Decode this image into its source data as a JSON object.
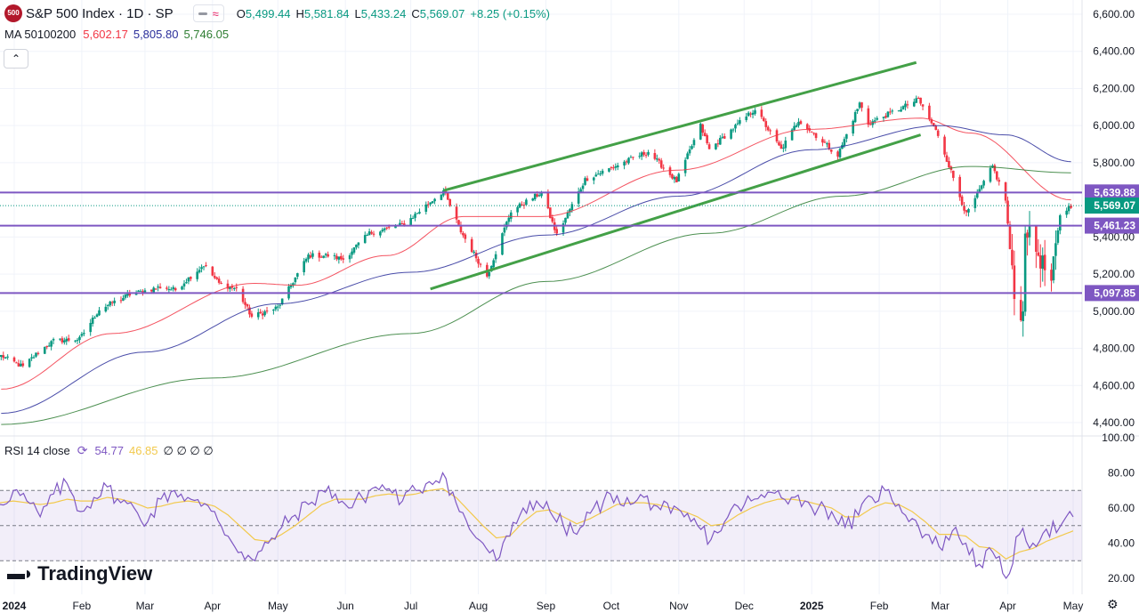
{
  "header": {
    "badge": "500",
    "title": "S&P 500 Index · 1D · SP",
    "open_label": "O",
    "open": "5,499.44",
    "high_label": "H",
    "high": "5,581.84",
    "low_label": "L",
    "low": "5,433.24",
    "close_label": "C",
    "close": "5,569.07",
    "change": "+8.25 (+0.15%)"
  },
  "ma_legend": {
    "label": "MA 50100200",
    "ma50": "5,602.17",
    "ma100": "5,805.80",
    "ma200": "5,746.05"
  },
  "rsi_legend": {
    "label": "RSI 14 close",
    "rsi": "54.77",
    "ma": "46.85",
    "extra": "∅ ∅ ∅ ∅"
  },
  "branding": {
    "logo_text": "TradingView"
  },
  "icons": {
    "collapse": "chevron-up-icon",
    "settings": "gear-icon",
    "sync": "sync-icon"
  },
  "colors": {
    "up": "#089981",
    "down": "#f23645",
    "ma50": "#f23645",
    "ma100": "#2a2e9a",
    "ma200": "#2e7d32",
    "channel": "#43a047",
    "level": "#7e57c2",
    "rsi": "#7e57c2",
    "rsi_ma": "#f2c94c"
  },
  "chart_data": [
    {
      "type": "candlestick",
      "title": "S&P 500 Index · 1D · SP",
      "y_ticks": [
        "6,600.00",
        "6,400.00",
        "6,200.00",
        "6,000.00",
        "5,800.00",
        "5,400.00",
        "5,200.00",
        "5,000.00",
        "4,800.00",
        "4,600.00",
        "4,400.00"
      ],
      "x_ticks": [
        "2024",
        "Feb",
        "Mar",
        "Apr",
        "May",
        "Jun",
        "Jul",
        "Aug",
        "Sep",
        "Oct",
        "Nov",
        "Dec",
        "2025",
        "Feb",
        "Mar",
        "Apr",
        "May"
      ],
      "ylim": [
        4350,
        6680
      ],
      "horizontal_levels": [
        {
          "value": 5639.88,
          "label": "5,639.88"
        },
        {
          "value": 5461.23,
          "label": "5,461.23"
        },
        {
          "value": 5097.85,
          "label": "5,097.85"
        }
      ],
      "last_price": {
        "value": 5569.07,
        "label": "5,569.07"
      },
      "channel_lines": [
        {
          "from": [
            "2024-07-16",
            5650
          ],
          "to": [
            "2025-02-18",
            6340
          ]
        },
        {
          "from": [
            "2024-07-10",
            5120
          ],
          "to": [
            "2025-02-20",
            5950
          ]
        }
      ],
      "anchors": [
        [
          "2023-12-26",
          4760
        ],
        [
          "2024-01-05",
          4700
        ],
        [
          "2024-01-12",
          4780
        ],
        [
          "2024-01-19",
          4840
        ],
        [
          "2024-01-31",
          4850
        ],
        [
          "2024-02-09",
          5010
        ],
        [
          "2024-02-23",
          5090
        ],
        [
          "2024-03-08",
          5130
        ],
        [
          "2024-03-15",
          5115
        ],
        [
          "2024-03-28",
          5250
        ],
        [
          "2024-04-04",
          5150
        ],
        [
          "2024-04-12",
          5120
        ],
        [
          "2024-04-19",
          4970
        ],
        [
          "2024-05-01",
          5020
        ],
        [
          "2024-05-15",
          5300
        ],
        [
          "2024-05-24",
          5300
        ],
        [
          "2024-05-31",
          5280
        ],
        [
          "2024-06-12",
          5420
        ],
        [
          "2024-06-28",
          5470
        ],
        [
          "2024-07-16",
          5650
        ],
        [
          "2024-07-24",
          5430
        ],
        [
          "2024-08-05",
          5190
        ],
        [
          "2024-08-16",
          5540
        ],
        [
          "2024-08-30",
          5640
        ],
        [
          "2024-09-06",
          5410
        ],
        [
          "2024-09-19",
          5710
        ],
        [
          "2024-10-18",
          5860
        ],
        [
          "2024-10-31",
          5700
        ],
        [
          "2024-11-11",
          6000
        ],
        [
          "2024-11-15",
          5870
        ],
        [
          "2024-12-06",
          6090
        ],
        [
          "2024-12-18",
          5870
        ],
        [
          "2024-12-26",
          6030
        ],
        [
          "2025-01-13",
          5840
        ],
        [
          "2025-01-23",
          6120
        ],
        [
          "2025-01-27",
          6010
        ],
        [
          "2025-02-19",
          6140
        ],
        [
          "2025-02-28",
          5950
        ],
        [
          "2025-03-13",
          5520
        ],
        [
          "2025-03-25",
          5780
        ],
        [
          "2025-03-31",
          5600
        ],
        [
          "2025-04-04",
          5070
        ],
        [
          "2025-04-08",
          4980
        ],
        [
          "2025-04-09",
          5460
        ],
        [
          "2025-04-21",
          5150
        ],
        [
          "2025-04-25",
          5520
        ],
        [
          "2025-04-30",
          5569
        ]
      ],
      "moving_averages": {
        "ma50": [
          [
            "2023-12-26",
            4580
          ],
          [
            "2024-02-15",
            4880
          ],
          [
            "2024-04-20",
            5150
          ],
          [
            "2024-05-10",
            5140
          ],
          [
            "2024-06-20",
            5300
          ],
          [
            "2024-07-25",
            5510
          ],
          [
            "2024-08-30",
            5510
          ],
          [
            "2024-10-31",
            5760
          ],
          [
            "2024-12-31",
            5980
          ],
          [
            "2025-02-20",
            6040
          ],
          [
            "2025-03-15",
            5960
          ],
          [
            "2025-04-30",
            5600
          ]
        ],
        "ma100": [
          [
            "2023-12-26",
            4450
          ],
          [
            "2024-03-01",
            4780
          ],
          [
            "2024-05-01",
            5040
          ],
          [
            "2024-07-01",
            5210
          ],
          [
            "2024-09-01",
            5410
          ],
          [
            "2024-11-01",
            5620
          ],
          [
            "2025-01-01",
            5870
          ],
          [
            "2025-03-01",
            6000
          ],
          [
            "2025-03-31",
            5950
          ],
          [
            "2025-04-30",
            5806
          ]
        ],
        "ma200": [
          [
            "2023-12-26",
            4390
          ],
          [
            "2024-04-01",
            4640
          ],
          [
            "2024-07-01",
            4880
          ],
          [
            "2024-09-01",
            5160
          ],
          [
            "2024-11-15",
            5420
          ],
          [
            "2025-01-15",
            5620
          ],
          [
            "2025-03-15",
            5780
          ],
          [
            "2025-04-30",
            5746
          ]
        ]
      }
    },
    {
      "type": "line",
      "title": "RSI 14 close",
      "ylim": [
        18,
        100
      ],
      "y_ticks": [
        "100.00",
        "80.00",
        "60.00",
        "40.00",
        "20.00"
      ],
      "bands": {
        "upper": 70,
        "middle": 50,
        "lower": 30
      },
      "series": [
        {
          "name": "RSI",
          "values": [
            62,
            70,
            64,
            55,
            68,
            74,
            58,
            66,
            72,
            63,
            60,
            52,
            65,
            70,
            66,
            61,
            58,
            44,
            35,
            30,
            40,
            49,
            56,
            62,
            70,
            68,
            60,
            66,
            72,
            71,
            64,
            70,
            75,
            80,
            63,
            48,
            40,
            30,
            44,
            60,
            64,
            58,
            50,
            45,
            57,
            64,
            67,
            62,
            66,
            61,
            57,
            55,
            50,
            42,
            52,
            61,
            64,
            66,
            70,
            66,
            64,
            60,
            58,
            49,
            56,
            66,
            70,
            62,
            54,
            45,
            38,
            47,
            40,
            28,
            35,
            20,
            45,
            40,
            48,
            49,
            55
          ]
        },
        {
          "name": "MA",
          "values": [
            63,
            64,
            63,
            62,
            63,
            65,
            64,
            64,
            66,
            65,
            63,
            60,
            61,
            63,
            64,
            63,
            61,
            56,
            49,
            42,
            41,
            45,
            50,
            56,
            62,
            65,
            65,
            65,
            67,
            68,
            67,
            68,
            70,
            71,
            66,
            58,
            50,
            43,
            44,
            52,
            58,
            59,
            55,
            51,
            54,
            58,
            62,
            63,
            63,
            62,
            60,
            58,
            55,
            50,
            51,
            56,
            60,
            63,
            65,
            65,
            64,
            62,
            60,
            55,
            55,
            60,
            63,
            62,
            58,
            52,
            45,
            45,
            44,
            38,
            37,
            31,
            35,
            37,
            41,
            44,
            47
          ]
        }
      ]
    }
  ]
}
